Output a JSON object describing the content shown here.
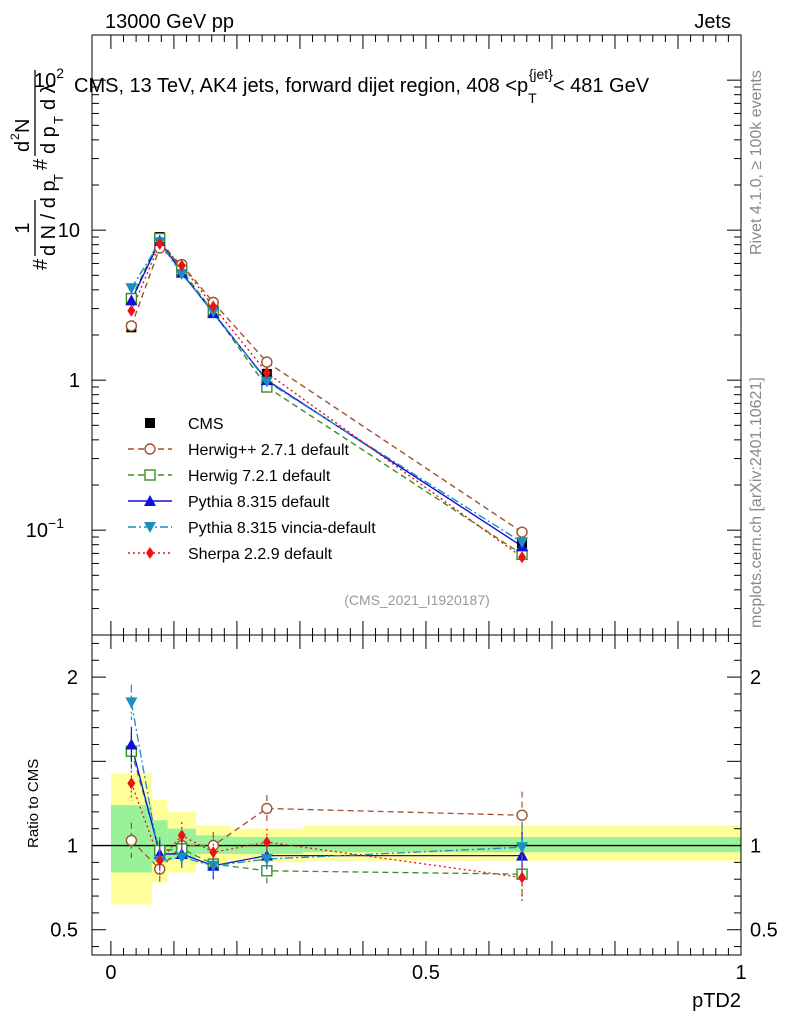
{
  "header": {
    "left": "13000 GeV pp",
    "right": "Jets"
  },
  "chart_data": [
    {
      "type": "scatter",
      "panel": "main",
      "title": "CMS, 13 TeV, AK4 jets, forward dijet region, 408 <p_T^{jet}< 481 GeV",
      "title_parts": {
        "pre": "CMS, 13 TeV, AK4 jets, forward dijet region, 408 <p",
        "sub": "T",
        "sup": "{jet}",
        "post": "< 481 GeV"
      },
      "xlabel": "pTD2",
      "ylabel": "1/(dN/dp_T) · d²N/(dp_T dλ)",
      "yscale": "log",
      "ylim": [
        0.02,
        200
      ],
      "xlim": [
        -0.03,
        1.0
      ],
      "y_tick_labels": [
        "10^-1",
        "1",
        "10",
        "10^2"
      ],
      "x": [
        0.0325,
        0.0775,
        0.1125,
        0.1625,
        0.2475,
        0.6525
      ],
      "reference_label": "(CMS_2021_I1920187)",
      "series": [
        {
          "name": "CMS",
          "color": "#000000",
          "marker": "square",
          "line": "none",
          "values": [
            2.25,
            9.0,
            5.5,
            3.2,
            1.1,
            0.082
          ]
        },
        {
          "name": "Herwig++ 2.7.1 default",
          "color": "#a0522d",
          "marker": "circle-open",
          "line": "dashed",
          "values": [
            2.3,
            7.6,
            5.9,
            3.3,
            1.32,
            0.097
          ]
        },
        {
          "name": "Herwig 7.2.1 default",
          "color": "#3a8f1e",
          "marker": "square-open",
          "line": "dashed",
          "values": [
            3.5,
            8.8,
            5.4,
            2.85,
            0.9,
            0.069
          ]
        },
        {
          "name": "Pythia 8.315 default",
          "color": "#1010dd",
          "marker": "triangle-up",
          "line": "solid",
          "values": [
            3.4,
            8.5,
            5.2,
            2.8,
            1.0,
            0.078
          ]
        },
        {
          "name": "Pythia 8.315 vincia-default",
          "color": "#1a8fc0",
          "marker": "triangle-down",
          "line": "dashdot",
          "values": [
            4.1,
            8.3,
            5.1,
            2.85,
            0.98,
            0.083
          ]
        },
        {
          "name": "Sherpa 2.2.9 default",
          "color": "#ee1111",
          "marker": "diamond",
          "line": "dotted",
          "values": [
            2.9,
            8.1,
            5.8,
            3.1,
            1.12,
            0.066
          ]
        }
      ]
    },
    {
      "type": "line",
      "panel": "ratio",
      "ylabel": "Ratio to CMS",
      "xlabel": "pTD2",
      "ylim": [
        0.35,
        2.25
      ],
      "xlim": [
        -0.03,
        1.0
      ],
      "y_ticks": [
        "0.5",
        "1",
        "2"
      ],
      "x_ticks": [
        "0",
        "0.5",
        "1"
      ],
      "bands": [
        {
          "x_from": 0.0,
          "x_to": 0.065,
          "inner": [
            0.84,
            1.24
          ],
          "outer": [
            0.65,
            1.43
          ]
        },
        {
          "x_from": 0.065,
          "x_to": 0.09,
          "inner": [
            0.9,
            1.15
          ],
          "outer": [
            0.78,
            1.27
          ]
        },
        {
          "x_from": 0.09,
          "x_to": 0.135,
          "inner": [
            0.92,
            1.1
          ],
          "outer": [
            0.84,
            1.2
          ]
        },
        {
          "x_from": 0.135,
          "x_to": 0.19,
          "inner": [
            0.95,
            1.06
          ],
          "outer": [
            0.89,
            1.12
          ]
        },
        {
          "x_from": 0.19,
          "x_to": 0.305,
          "inner": [
            0.95,
            1.05
          ],
          "outer": [
            0.9,
            1.1
          ]
        },
        {
          "x_from": 0.305,
          "x_to": 1.0,
          "inner": [
            0.96,
            1.05
          ],
          "outer": [
            0.91,
            1.12
          ]
        }
      ],
      "x": [
        0.0325,
        0.0775,
        0.1125,
        0.1625,
        0.2475,
        0.6525
      ],
      "series": [
        {
          "name": "Herwig++ 2.7.1 default",
          "color": "#a0522d",
          "values": [
            1.03,
            0.86,
            1.0,
            1.0,
            1.22,
            1.18
          ]
        },
        {
          "name": "Herwig 7.2.1 default",
          "color": "#3a8f1e",
          "values": [
            1.56,
            0.97,
            0.98,
            0.89,
            0.85,
            0.83
          ]
        },
        {
          "name": "Pythia 8.315 default",
          "color": "#1010dd",
          "values": [
            1.6,
            0.95,
            0.95,
            0.88,
            0.94,
            0.94
          ]
        },
        {
          "name": "Pythia 8.315 vincia-default",
          "color": "#1a8fc0",
          "values": [
            1.85,
            0.91,
            0.93,
            0.88,
            0.92,
            0.99
          ]
        },
        {
          "name": "Sherpa 2.2.9 default",
          "color": "#ee1111",
          "values": [
            1.37,
            0.91,
            1.06,
            0.96,
            1.02,
            0.81
          ]
        }
      ]
    }
  ],
  "side_labels": {
    "rivet": "Rivet 4.1.0, ≥ 100k events",
    "mcplots": "mcplots.cern.ch [arXiv:2401.10621]"
  }
}
